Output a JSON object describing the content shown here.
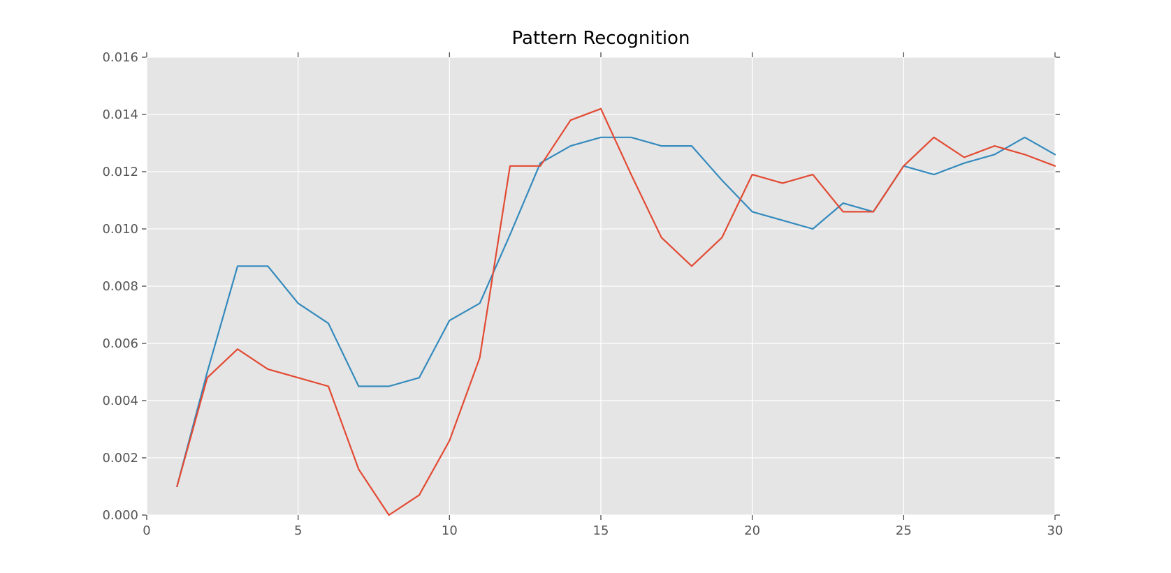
{
  "chart_data": {
    "type": "line",
    "title": "Pattern Recognition",
    "xlabel": "",
    "ylabel": "",
    "xlim": [
      0,
      30
    ],
    "ylim": [
      0,
      0.016
    ],
    "xticks": [
      0,
      5,
      10,
      15,
      20,
      25,
      30
    ],
    "yticks": [
      0.0,
      0.002,
      0.004,
      0.006,
      0.008,
      0.01,
      0.012,
      0.014,
      0.016
    ],
    "ytick_decimals": 3,
    "grid": true,
    "legend_position": "none",
    "plot_background": "#E5E5E5",
    "figure_background": "#FFFFFF",
    "grid_color": "#FFFFFF",
    "tick_color": "#555555",
    "tick_label_color": "#555555",
    "title_color": "#000000",
    "x": [
      1,
      2,
      3,
      4,
      5,
      6,
      7,
      8,
      9,
      10,
      11,
      12,
      13,
      14,
      15,
      16,
      17,
      18,
      19,
      20,
      21,
      22,
      23,
      24,
      25,
      26,
      27,
      28,
      29,
      30
    ],
    "series": [
      {
        "name": "blue-series",
        "color": "#348ABD",
        "values": [
          0.001,
          0.005,
          0.0087,
          0.0087,
          0.0074,
          0.0067,
          0.0045,
          0.0045,
          0.0048,
          0.0068,
          0.0074,
          0.0098,
          0.0123,
          0.0129,
          0.0132,
          0.0132,
          0.0129,
          0.0129,
          0.0117,
          0.0106,
          0.0103,
          0.01,
          0.0109,
          0.0106,
          0.0122,
          0.0119,
          0.0123,
          0.0126,
          0.0132,
          0.0126
        ]
      },
      {
        "name": "red-series",
        "color": "#E24A33",
        "values": [
          0.001,
          0.0048,
          0.0058,
          0.0051,
          0.0048,
          0.0045,
          0.0016,
          0.0,
          0.0007,
          0.0026,
          0.0055,
          0.0122,
          0.0122,
          0.0138,
          0.0142,
          0.0119,
          0.0097,
          0.0087,
          0.0097,
          0.0119,
          0.0116,
          0.0119,
          0.0106,
          0.0106,
          0.0122,
          0.0132,
          0.0125,
          0.0129,
          0.0126,
          0.0122
        ]
      }
    ]
  }
}
